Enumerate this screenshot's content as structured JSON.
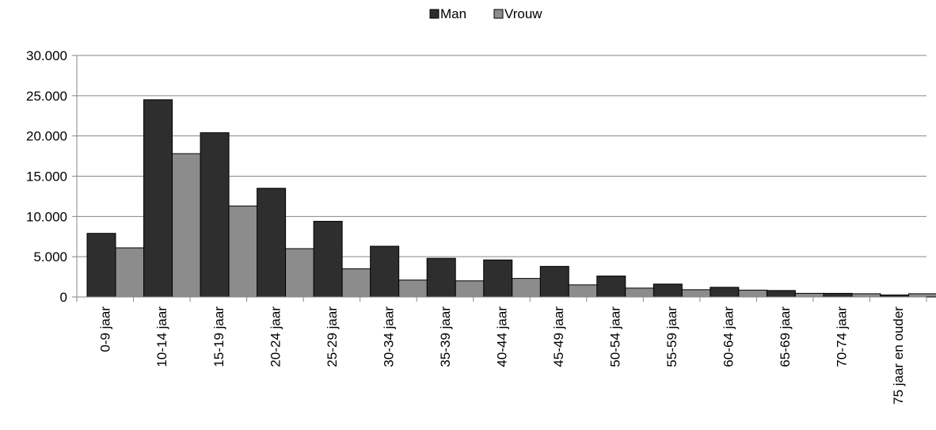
{
  "chart_data": {
    "type": "bar",
    "categories": [
      "0-9 jaar",
      "10-14 jaar",
      "15-19 jaar",
      "20-24 jaar",
      "25-29 jaar",
      "30-34 jaar",
      "35-39 jaar",
      "40-44 jaar",
      "45-49 jaar",
      "50-54 jaar",
      "55-59 jaar",
      "60-64 jaar",
      "65-69 jaar",
      "70-74 jaar",
      "75 jaar en ouder"
    ],
    "series": [
      {
        "name": "Man",
        "color": "#2e2e2e",
        "values": [
          7900,
          24500,
          20400,
          13500,
          9400,
          6300,
          4800,
          4600,
          3800,
          2600,
          1600,
          1200,
          800,
          450,
          250
        ]
      },
      {
        "name": "Vrouw",
        "color": "#8c8c8c",
        "values": [
          6100,
          17800,
          11300,
          6000,
          3500,
          2100,
          2000,
          2300,
          1500,
          1100,
          900,
          850,
          450,
          400,
          400
        ]
      }
    ],
    "yticks": [
      "0",
      "5.000",
      "10.000",
      "15.000",
      "20.000",
      "25.000",
      "30.000"
    ],
    "ylim": [
      0,
      30000
    ],
    "grid": true,
    "legend_position": "top-center",
    "title": "",
    "xlabel": "",
    "ylabel": ""
  }
}
